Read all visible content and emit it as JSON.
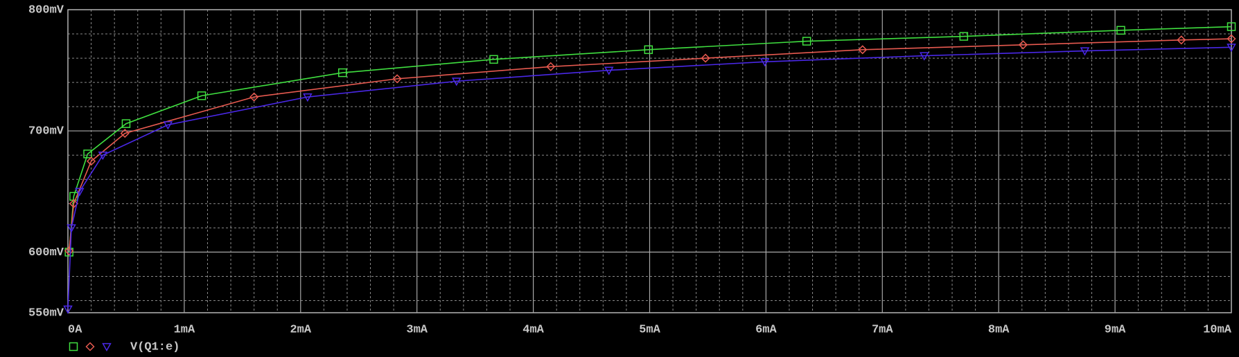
{
  "chart_data": {
    "type": "line",
    "legend_label": "V(Q1:e)",
    "xlim": [
      0,
      10
    ],
    "ylim": [
      550,
      800
    ],
    "xticks": [
      {
        "value": 0,
        "label": "0A"
      },
      {
        "value": 1,
        "label": "1mA"
      },
      {
        "value": 2,
        "label": "2mA"
      },
      {
        "value": 3,
        "label": "3mA"
      },
      {
        "value": 4,
        "label": "4mA"
      },
      {
        "value": 5,
        "label": "5mA"
      },
      {
        "value": 6,
        "label": "6mA"
      },
      {
        "value": 7,
        "label": "7mA"
      },
      {
        "value": 8,
        "label": "8mA"
      },
      {
        "value": 9,
        "label": "9mA"
      },
      {
        "value": 10,
        "label": "10mA"
      }
    ],
    "yticks": [
      {
        "value": 550,
        "label": "550mV"
      },
      {
        "value": 600,
        "label": "600mV"
      },
      {
        "value": 700,
        "label": "700mV"
      },
      {
        "value": 800,
        "label": "800mV"
      }
    ],
    "xminor": [
      0.2,
      0.4,
      0.6,
      0.8,
      1.2,
      1.4,
      1.6,
      1.8,
      2.2,
      2.4,
      2.6,
      2.8,
      3.2,
      3.4,
      3.6,
      3.8,
      4.2,
      4.4,
      4.6,
      4.8,
      5.2,
      5.4,
      5.6,
      5.8,
      6.2,
      6.4,
      6.6,
      6.8,
      7.2,
      7.4,
      7.6,
      7.8,
      8.2,
      8.4,
      8.6,
      8.8,
      9.2,
      9.4,
      9.6,
      9.8
    ],
    "yminor": [
      560,
      580,
      620,
      640,
      660,
      680,
      720,
      740,
      760,
      780
    ],
    "grid": true,
    "series": [
      {
        "color": "#40e040",
        "marker": "square",
        "x": [
          0.01,
          0.05,
          0.17,
          0.5,
          1.15,
          2.36,
          3.66,
          4.99,
          6.35,
          7.7,
          9.05,
          10
        ],
        "values": [
          600,
          646,
          681,
          706,
          729,
          748,
          759,
          767,
          774,
          778,
          783,
          786
        ]
      },
      {
        "color": "#e85a50",
        "marker": "diamond",
        "x": [
          0.01,
          0.05,
          0.2,
          0.49,
          1.6,
          2.83,
          4.15,
          5.48,
          6.83,
          8.21,
          9.57,
          10
        ],
        "values": [
          601,
          640,
          675,
          698,
          728,
          743,
          753,
          760,
          767,
          771,
          775,
          776
        ]
      },
      {
        "color": "#4a28e8",
        "marker": "triangle",
        "x": [
          0,
          0.03,
          0.1,
          0.3,
          0.86,
          2.06,
          3.34,
          4.65,
          5.99,
          7.36,
          8.74,
          10
        ],
        "values": [
          553,
          620,
          650,
          680,
          705,
          728,
          741,
          750,
          757,
          762,
          766,
          769
        ]
      }
    ]
  }
}
